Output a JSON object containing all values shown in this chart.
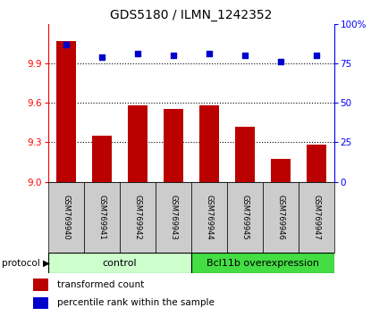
{
  "title": "GDS5180 / ILMN_1242352",
  "samples": [
    "GSM769940",
    "GSM769941",
    "GSM769942",
    "GSM769943",
    "GSM769944",
    "GSM769945",
    "GSM769946",
    "GSM769947"
  ],
  "red_values": [
    10.07,
    9.35,
    9.58,
    9.55,
    9.58,
    9.42,
    9.17,
    9.28
  ],
  "blue_values": [
    87,
    79,
    81,
    80,
    81,
    80,
    76,
    80
  ],
  "ylim_left": [
    9.0,
    10.2
  ],
  "ylim_right": [
    0,
    100
  ],
  "yticks_left": [
    9.0,
    9.3,
    9.6,
    9.9
  ],
  "yticks_right": [
    0,
    25,
    50,
    75,
    100
  ],
  "control_samples": 4,
  "control_label": "control",
  "overexpression_label": "Bcl11b overexpression",
  "protocol_label": "protocol",
  "legend_red": "transformed count",
  "legend_blue": "percentile rank within the sample",
  "bar_color": "#bb0000",
  "dot_color": "#0000cc",
  "control_bg": "#ccffcc",
  "overexp_bg": "#44dd44",
  "sample_box_bg": "#cccccc",
  "fig_width": 4.15,
  "fig_height": 3.54,
  "dpi": 100
}
